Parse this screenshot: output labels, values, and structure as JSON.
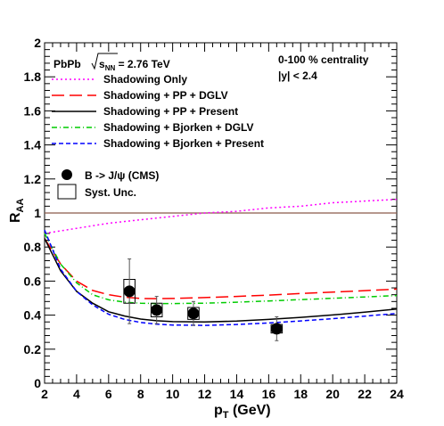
{
  "chart_data": {
    "type": "line",
    "xlabel": "p",
    "xlabel_sub": "T",
    "xlabel_unit": " (GeV)",
    "ylabel": "R",
    "ylabel_sub": "AA",
    "xlim": [
      2,
      24
    ],
    "ylim": [
      0,
      2
    ],
    "xticks": [
      2,
      4,
      6,
      8,
      10,
      12,
      14,
      16,
      18,
      20,
      22,
      24
    ],
    "yticks": [
      0,
      0.2,
      0.4,
      0.6,
      0.8,
      1,
      1.2,
      1.4,
      1.6,
      1.8,
      2
    ],
    "ytick_labels": [
      "0",
      "0.2",
      "0.4",
      "0.6",
      "0.8",
      "1",
      "1.2",
      "1.4",
      "1.6",
      "1.8",
      "2"
    ],
    "annotations": {
      "system": "PbPb",
      "energy_root": "s",
      "energy_sub": "NN",
      "energy_value": " = 2.76 TeV",
      "centrality": "0-100 % centrality",
      "rapidity": "|y| < 2.4"
    },
    "reference_line": {
      "y": 1.0,
      "color": "#8b5a4a"
    },
    "series": [
      {
        "name": "Shadowing Only",
        "color": "#ff00ff",
        "dash": "2,3",
        "x": [
          2,
          4,
          6,
          8,
          10,
          12,
          14,
          16,
          18,
          20,
          22,
          24
        ],
        "y": [
          0.88,
          0.91,
          0.94,
          0.96,
          0.98,
          1.0,
          1.01,
          1.03,
          1.04,
          1.06,
          1.07,
          1.08
        ]
      },
      {
        "name": "Shadowing + PP + DGLV",
        "color": "#ff0000",
        "dash": "14,6",
        "x": [
          2,
          3,
          4,
          5,
          6,
          7,
          8,
          9,
          10,
          12,
          14,
          16,
          18,
          20,
          22,
          24
        ],
        "y": [
          0.85,
          0.7,
          0.6,
          0.545,
          0.52,
          0.505,
          0.498,
          0.497,
          0.498,
          0.503,
          0.51,
          0.518,
          0.527,
          0.535,
          0.544,
          0.553
        ]
      },
      {
        "name": "Shadowing + PP + Present",
        "color": "#000000",
        "dash": "",
        "x": [
          2,
          3,
          4,
          5,
          6,
          7,
          8,
          9,
          10,
          12,
          14,
          16,
          18,
          20,
          22,
          24
        ],
        "y": [
          0.85,
          0.66,
          0.54,
          0.47,
          0.42,
          0.395,
          0.377,
          0.367,
          0.362,
          0.36,
          0.365,
          0.375,
          0.387,
          0.401,
          0.418,
          0.436
        ]
      },
      {
        "name": "Shadowing + Bjorken + DGLV",
        "color": "#00cc00",
        "dash": "6,3,1,3",
        "x": [
          2,
          3,
          4,
          5,
          6,
          7,
          8,
          9,
          10,
          12,
          14,
          16,
          18,
          20,
          22,
          24
        ],
        "y": [
          0.88,
          0.7,
          0.59,
          0.52,
          0.49,
          0.476,
          0.47,
          0.468,
          0.468,
          0.47,
          0.476,
          0.483,
          0.491,
          0.499,
          0.507,
          0.515
        ]
      },
      {
        "name": "Shadowing + Bjorken + Present",
        "color": "#0000ff",
        "dash": "5,3",
        "x": [
          2,
          3,
          4,
          5,
          6,
          7,
          8,
          9,
          10,
          12,
          14,
          16,
          18,
          20,
          22,
          24
        ],
        "y": [
          0.9,
          0.67,
          0.54,
          0.46,
          0.405,
          0.375,
          0.357,
          0.347,
          0.342,
          0.34,
          0.345,
          0.354,
          0.366,
          0.379,
          0.394,
          0.41
        ]
      }
    ],
    "data_points": {
      "name": "B -> J/ψ (CMS)",
      "points": [
        {
          "x": 7.3,
          "y": 0.54,
          "stat_err": 0.19,
          "syst_err": 0.07,
          "x_width": 0.7
        },
        {
          "x": 9.0,
          "y": 0.43,
          "stat_err": 0.08,
          "syst_err": 0.04,
          "x_width": 0.7
        },
        {
          "x": 11.3,
          "y": 0.41,
          "stat_err": 0.07,
          "syst_err": 0.035,
          "x_width": 0.7
        },
        {
          "x": 16.5,
          "y": 0.32,
          "stat_err": 0.07,
          "syst_err": 0.025,
          "x_width": 0.7
        }
      ]
    },
    "systematics_label": "Syst. Unc."
  }
}
